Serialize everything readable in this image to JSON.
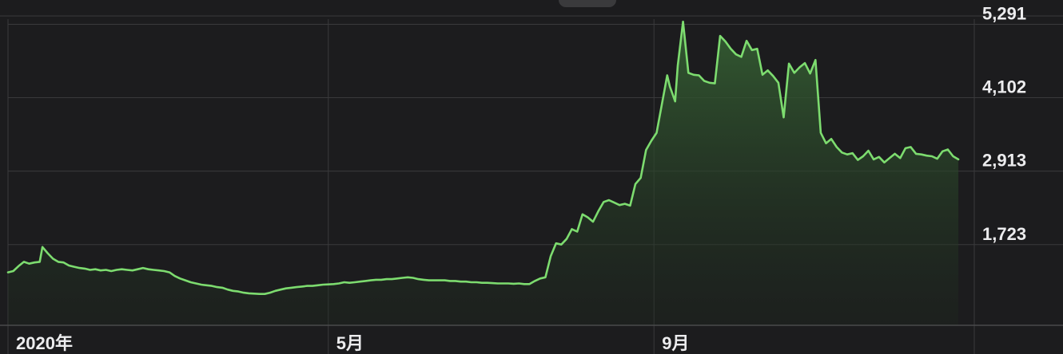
{
  "colors": {
    "background": "#1c1c1e",
    "line": "#7ddc6f",
    "fill_top": "#355f33",
    "fill_bottom": "#1e2a1e",
    "grid": "#3a3a3c",
    "text": "#ececee"
  },
  "chart_data": {
    "type": "area",
    "title": "",
    "xlabel": "",
    "ylabel": "",
    "x_ticks": [
      {
        "label": "2020年",
        "day": 0
      },
      {
        "label": "5月",
        "day": 121
      },
      {
        "label": "9月",
        "day": 244
      }
    ],
    "y_ticks": [
      1723,
      2913,
      4102,
      5291
    ],
    "y_tick_labels": [
      "1,723",
      "2,913",
      "4,102",
      "5,291"
    ],
    "ylim": [
      532,
      5491
    ],
    "xlim": [
      0,
      365
    ],
    "grid": true,
    "y_axis_position": "right",
    "series": [
      {
        "values": [
          [
            0,
            1390
          ],
          [
            2,
            1410
          ],
          [
            4,
            1490
          ],
          [
            6,
            1560
          ],
          [
            8,
            1530
          ],
          [
            10,
            1550
          ],
          [
            12,
            1560
          ],
          [
            13,
            1800
          ],
          [
            15,
            1700
          ],
          [
            17,
            1610
          ],
          [
            19,
            1560
          ],
          [
            21,
            1550
          ],
          [
            23,
            1500
          ],
          [
            25,
            1480
          ],
          [
            27,
            1460
          ],
          [
            29,
            1450
          ],
          [
            31,
            1430
          ],
          [
            33,
            1440
          ],
          [
            35,
            1420
          ],
          [
            37,
            1430
          ],
          [
            39,
            1410
          ],
          [
            41,
            1430
          ],
          [
            43,
            1440
          ],
          [
            45,
            1430
          ],
          [
            47,
            1420
          ],
          [
            49,
            1440
          ],
          [
            51,
            1460
          ],
          [
            53,
            1440
          ],
          [
            55,
            1430
          ],
          [
            57,
            1420
          ],
          [
            59,
            1410
          ],
          [
            61,
            1390
          ],
          [
            63,
            1330
          ],
          [
            65,
            1290
          ],
          [
            67,
            1260
          ],
          [
            69,
            1230
          ],
          [
            71,
            1210
          ],
          [
            73,
            1190
          ],
          [
            75,
            1180
          ],
          [
            77,
            1170
          ],
          [
            79,
            1150
          ],
          [
            81,
            1140
          ],
          [
            83,
            1110
          ],
          [
            85,
            1090
          ],
          [
            87,
            1080
          ],
          [
            89,
            1060
          ],
          [
            91,
            1050
          ],
          [
            93,
            1045
          ],
          [
            95,
            1040
          ],
          [
            97,
            1040
          ],
          [
            99,
            1060
          ],
          [
            101,
            1090
          ],
          [
            103,
            1110
          ],
          [
            105,
            1130
          ],
          [
            107,
            1140
          ],
          [
            109,
            1150
          ],
          [
            111,
            1160
          ],
          [
            113,
            1170
          ],
          [
            115,
            1170
          ],
          [
            117,
            1180
          ],
          [
            119,
            1190
          ],
          [
            121,
            1195
          ],
          [
            123,
            1200
          ],
          [
            125,
            1210
          ],
          [
            127,
            1230
          ],
          [
            129,
            1220
          ],
          [
            131,
            1230
          ],
          [
            133,
            1240
          ],
          [
            135,
            1250
          ],
          [
            137,
            1260
          ],
          [
            139,
            1270
          ],
          [
            141,
            1270
          ],
          [
            143,
            1280
          ],
          [
            145,
            1280
          ],
          [
            147,
            1290
          ],
          [
            149,
            1300
          ],
          [
            151,
            1310
          ],
          [
            153,
            1300
          ],
          [
            155,
            1280
          ],
          [
            157,
            1270
          ],
          [
            159,
            1260
          ],
          [
            161,
            1260
          ],
          [
            163,
            1260
          ],
          [
            165,
            1260
          ],
          [
            167,
            1250
          ],
          [
            169,
            1250
          ],
          [
            171,
            1240
          ],
          [
            173,
            1240
          ],
          [
            175,
            1230
          ],
          [
            177,
            1230
          ],
          [
            179,
            1220
          ],
          [
            181,
            1220
          ],
          [
            183,
            1215
          ],
          [
            185,
            1210
          ],
          [
            187,
            1210
          ],
          [
            189,
            1210
          ],
          [
            191,
            1205
          ],
          [
            193,
            1210
          ],
          [
            195,
            1200
          ],
          [
            197,
            1200
          ],
          [
            199,
            1250
          ],
          [
            201,
            1290
          ],
          [
            203,
            1310
          ],
          [
            205,
            1650
          ],
          [
            207,
            1860
          ],
          [
            209,
            1840
          ],
          [
            211,
            1930
          ],
          [
            213,
            2090
          ],
          [
            215,
            2050
          ],
          [
            217,
            2330
          ],
          [
            219,
            2280
          ],
          [
            221,
            2210
          ],
          [
            223,
            2380
          ],
          [
            225,
            2530
          ],
          [
            227,
            2560
          ],
          [
            229,
            2520
          ],
          [
            231,
            2480
          ],
          [
            233,
            2500
          ],
          [
            235,
            2470
          ],
          [
            237,
            2820
          ],
          [
            239,
            2920
          ],
          [
            241,
            3370
          ],
          [
            243,
            3520
          ],
          [
            245,
            3650
          ],
          [
            247,
            4110
          ],
          [
            249,
            4580
          ],
          [
            250,
            4400
          ],
          [
            252,
            4160
          ],
          [
            253,
            4740
          ],
          [
            255,
            5450
          ],
          [
            257,
            4620
          ],
          [
            259,
            4590
          ],
          [
            261,
            4580
          ],
          [
            263,
            4490
          ],
          [
            265,
            4460
          ],
          [
            267,
            4450
          ],
          [
            269,
            5220
          ],
          [
            271,
            5130
          ],
          [
            273,
            5010
          ],
          [
            275,
            4920
          ],
          [
            277,
            4880
          ],
          [
            279,
            5140
          ],
          [
            281,
            4990
          ],
          [
            283,
            5010
          ],
          [
            285,
            4590
          ],
          [
            287,
            4660
          ],
          [
            289,
            4570
          ],
          [
            291,
            4460
          ],
          [
            293,
            3900
          ],
          [
            295,
            4770
          ],
          [
            297,
            4620
          ],
          [
            299,
            4710
          ],
          [
            301,
            4780
          ],
          [
            303,
            4610
          ],
          [
            305,
            4830
          ],
          [
            307,
            3650
          ],
          [
            309,
            3480
          ],
          [
            311,
            3550
          ],
          [
            313,
            3420
          ],
          [
            315,
            3330
          ],
          [
            317,
            3300
          ],
          [
            319,
            3320
          ],
          [
            321,
            3210
          ],
          [
            323,
            3270
          ],
          [
            325,
            3360
          ],
          [
            327,
            3220
          ],
          [
            329,
            3260
          ],
          [
            331,
            3170
          ],
          [
            333,
            3240
          ],
          [
            335,
            3310
          ],
          [
            337,
            3240
          ],
          [
            339,
            3400
          ],
          [
            341,
            3420
          ],
          [
            343,
            3310
          ],
          [
            345,
            3300
          ],
          [
            347,
            3280
          ],
          [
            349,
            3270
          ],
          [
            351,
            3230
          ],
          [
            353,
            3350
          ],
          [
            355,
            3380
          ],
          [
            357,
            3270
          ],
          [
            359,
            3220
          ]
        ]
      }
    ]
  }
}
